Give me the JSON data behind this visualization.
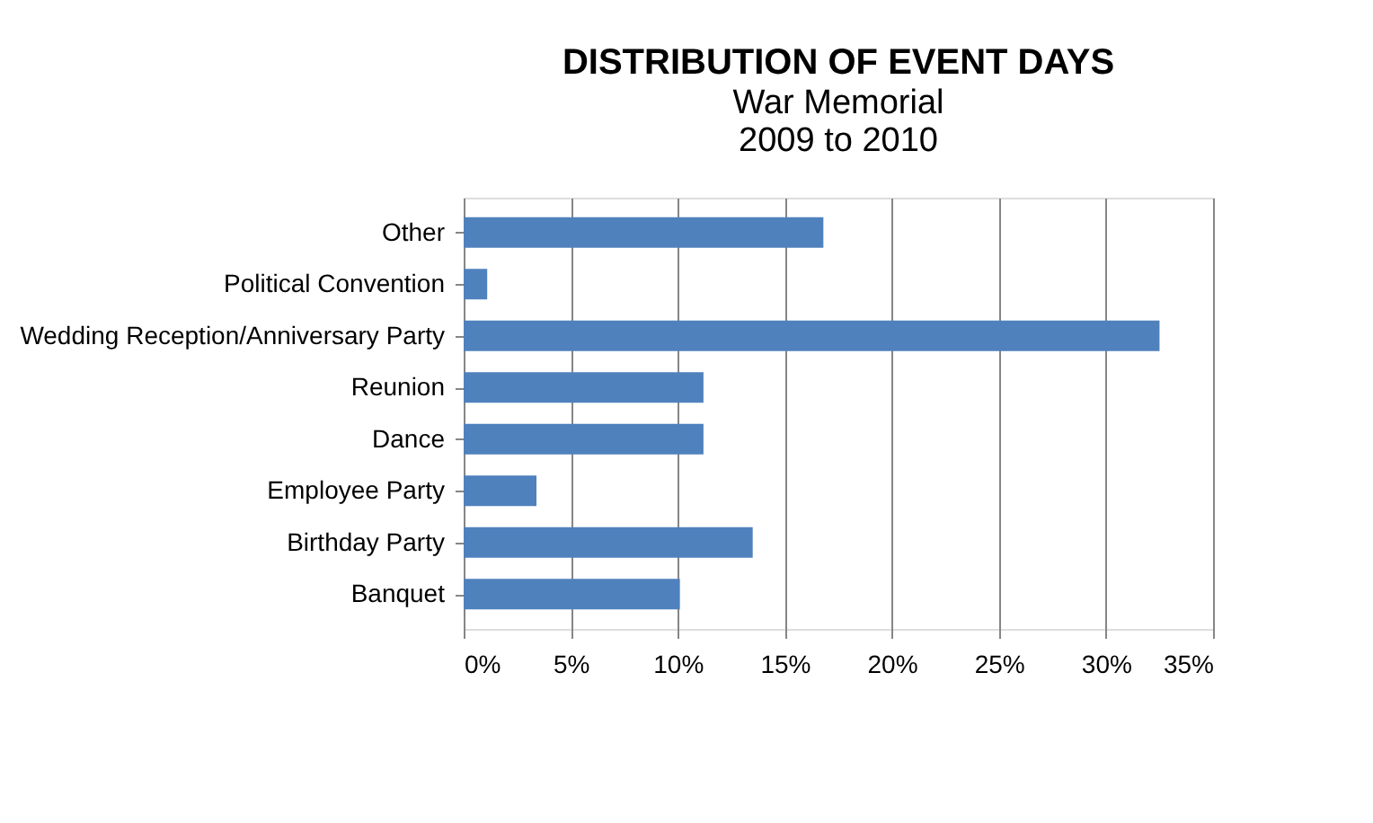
{
  "chart_data": {
    "type": "bar",
    "orientation": "horizontal",
    "title": "DISTRIBUTION OF EVENT DAYS",
    "subtitle": [
      "War Memorial",
      "2009 to 2010"
    ],
    "categories": [
      "Other",
      "Political Convention",
      "Wedding Reception/Anniversary Party",
      "Reunion",
      "Dance",
      "Employee  Party",
      "Birthday Party",
      "Banquet"
    ],
    "values": [
      16.8,
      1.1,
      32.5,
      11.2,
      11.2,
      3.4,
      13.5,
      10.1
    ],
    "color": "#4f81bd",
    "xlim": [
      0,
      35
    ],
    "xticks": [
      {
        "value": 0,
        "label": "0%"
      },
      {
        "value": 5,
        "label": "5%"
      },
      {
        "value": 10,
        "label": "10%"
      },
      {
        "value": 15,
        "label": "15%"
      },
      {
        "value": 20,
        "label": "20%"
      },
      {
        "value": 25,
        "label": "25%"
      },
      {
        "value": 30,
        "label": "30%"
      },
      {
        "value": 35,
        "label": "35%"
      }
    ],
    "grid": "x"
  }
}
